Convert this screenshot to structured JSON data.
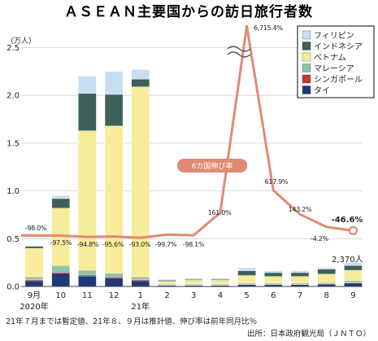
{
  "chart_data": {
    "type": "bar",
    "title": "ＡＳＥＡＮ主要国からの訪日旅行者数",
    "unit_label": "（万人）",
    "categories": [
      "9月",
      "10",
      "11",
      "12",
      "1",
      "2",
      "3",
      "4",
      "5",
      "6",
      "7",
      "8",
      "9"
    ],
    "year_labels": [
      {
        "category_index": 0,
        "text": "2020年"
      },
      {
        "category_index": 4,
        "text": "21年"
      }
    ],
    "ylim": [
      0,
      2.7
    ],
    "yticks": [
      "0.0",
      "0.5",
      "1.0",
      "1.5",
      "2.0",
      "2.5"
    ],
    "ytick_values": [
      0,
      0.5,
      1.0,
      1.5,
      2.0,
      2.5
    ],
    "stack_order": [
      "タイ",
      "シンガポール",
      "マレーシア",
      "ベトナム",
      "インドネシア",
      "フィリピン"
    ],
    "series": [
      {
        "name": "タイ",
        "color": "#1f3a7a",
        "values": [
          0.06,
          0.14,
          0.11,
          0.09,
          0.06,
          0.01,
          0.01,
          0.01,
          0.02,
          0.02,
          0.02,
          0.025,
          0.035
        ]
      },
      {
        "name": "シンガポール",
        "color": "#c0392b",
        "values": [
          0.01,
          0.01,
          0.01,
          0.01,
          0.01,
          0.005,
          0.005,
          0.005,
          0.005,
          0.005,
          0.005,
          0.005,
          0.005
        ]
      },
      {
        "name": "マレーシア",
        "color": "#8fc3a8",
        "values": [
          0.03,
          0.07,
          0.05,
          0.04,
          0.03,
          0.01,
          0.01,
          0.01,
          0.01,
          0.01,
          0.01,
          0.01,
          0.02
        ]
      },
      {
        "name": "ベトナム",
        "color": "#f6ec9a",
        "values": [
          0.3,
          0.6,
          1.46,
          1.54,
          1.99,
          0.03,
          0.04,
          0.04,
          0.08,
          0.07,
          0.07,
          0.09,
          0.11
        ]
      },
      {
        "name": "インドネシア",
        "color": "#3f6058",
        "values": [
          0.02,
          0.1,
          0.39,
          0.33,
          0.08,
          0.01,
          0.01,
          0.01,
          0.05,
          0.04,
          0.04,
          0.05,
          0.05
        ]
      },
      {
        "name": "フィリピン",
        "color": "#c9ddf0",
        "values": [
          0.01,
          0.03,
          0.18,
          0.24,
          0.1,
          0.01,
          0.01,
          0.01,
          0.03,
          0.02,
          0.02,
          0.02,
          0.03
        ]
      }
    ],
    "growth_rate": {
      "label": "6カ国伸び率",
      "color": "#e08a74",
      "labels": [
        "-98.0%",
        "-97.5%",
        "-94.8%",
        "-95.6%",
        "-93.0%",
        "-99.7%",
        "-98.1%",
        "161.0%",
        "6,715.4%",
        "617.9%",
        "143.2%",
        "-4.2%",
        "-46.6%"
      ],
      "values": [
        -98.0,
        -97.5,
        -94.8,
        -95.6,
        -93.0,
        -99.7,
        -98.1,
        161.0,
        6715.4,
        617.9,
        143.2,
        -4.2,
        -46.6
      ]
    },
    "final_total_label": "2,370人",
    "notes": [
      "21年７月までは暫定値、21年８、９月は推計値、伸び率は前年同月比％",
      "出所：日本政府観光局（ＪＮＴＯ）"
    ]
  }
}
